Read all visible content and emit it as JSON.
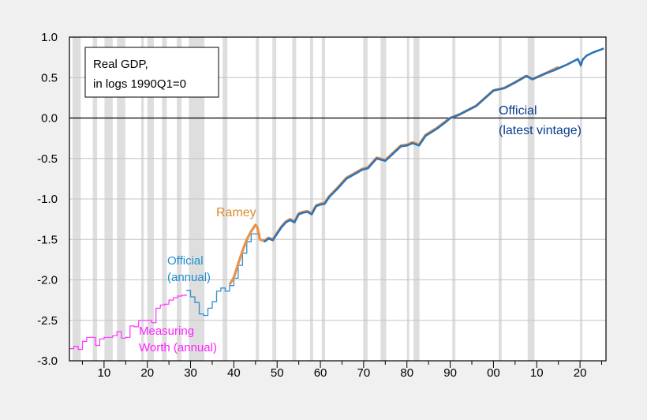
{
  "chart_data": {
    "type": "line",
    "title": "Real GDP, in logs 1990Q1=0",
    "title_lines": [
      "Real GDP,",
      "in logs 1990Q1=0"
    ],
    "xlabel": "",
    "ylabel": "",
    "xlim": [
      1902,
      2026
    ],
    "ylim": [
      -3.0,
      1.0
    ],
    "yticks": [
      1.0,
      0.5,
      0.0,
      -0.5,
      -1.0,
      -1.5,
      -2.0,
      -2.5,
      -3.0
    ],
    "ytick_labels": [
      "1.0",
      "0.5",
      "0.0",
      "-0.5",
      "-1.0",
      "-1.5",
      "-2.0",
      "-2.5",
      "-3.0"
    ],
    "xticks": [
      1910,
      1920,
      1930,
      1940,
      1950,
      1960,
      1970,
      1980,
      1990,
      2000,
      2010,
      2020
    ],
    "xtick_labels": [
      "10",
      "20",
      "30",
      "40",
      "50",
      "60",
      "70",
      "80",
      "90",
      "00",
      "10",
      "20"
    ],
    "grid": true,
    "legend": "top-left",
    "recessions": [
      [
        1902.7,
        1904.6
      ],
      [
        1907.4,
        1908.4
      ],
      [
        1910.1,
        1912.0
      ],
      [
        1913.0,
        1914.9
      ],
      [
        1918.6,
        1919.2
      ],
      [
        1920.0,
        1921.5
      ],
      [
        1923.4,
        1924.5
      ],
      [
        1926.8,
        1927.9
      ],
      [
        1929.6,
        1933.2
      ],
      [
        1937.4,
        1938.5
      ],
      [
        1945.1,
        1945.8
      ],
      [
        1948.9,
        1949.8
      ],
      [
        1953.5,
        1954.4
      ],
      [
        1957.6,
        1958.3
      ],
      [
        1960.3,
        1961.1
      ],
      [
        1969.9,
        1970.9
      ],
      [
        1973.9,
        1975.2
      ],
      [
        1980.0,
        1980.5
      ],
      [
        1981.5,
        1982.9
      ],
      [
        1990.5,
        1991.2
      ],
      [
        2001.2,
        2001.9
      ],
      [
        2007.9,
        2009.5
      ],
      [
        2020.0,
        2020.4
      ]
    ],
    "series": [
      {
        "name": "Measuring Worth (annual)",
        "label_lines": [
          "Measuring",
          "Worth (annual)"
        ],
        "color": "#ff33ff",
        "step": true,
        "x": [
          1902,
          1903,
          1904,
          1905,
          1906,
          1907,
          1908,
          1909,
          1910,
          1911,
          1912,
          1913,
          1914,
          1915,
          1916,
          1917,
          1918,
          1919,
          1920,
          1921,
          1922,
          1923,
          1924,
          1925,
          1926,
          1927,
          1928,
          1929
        ],
        "y": [
          -2.85,
          -2.82,
          -2.86,
          -2.76,
          -2.71,
          -2.71,
          -2.81,
          -2.73,
          -2.71,
          -2.71,
          -2.69,
          -2.64,
          -2.72,
          -2.71,
          -2.57,
          -2.58,
          -2.5,
          -2.5,
          -2.5,
          -2.53,
          -2.35,
          -2.31,
          -2.3,
          -2.25,
          -2.22,
          -2.2,
          -2.19,
          -2.18
        ]
      },
      {
        "name": "Official (annual)",
        "label_lines": [
          "Official",
          "(annual)"
        ],
        "color": "#2f8fcf",
        "step": true,
        "x": [
          1929,
          1930,
          1931,
          1932,
          1933,
          1934,
          1935,
          1936,
          1937,
          1938,
          1939,
          1940,
          1941,
          1942,
          1943,
          1944,
          1945,
          1946,
          1947
        ],
        "y": [
          -2.13,
          -2.21,
          -2.28,
          -2.42,
          -2.44,
          -2.35,
          -2.27,
          -2.14,
          -2.1,
          -2.14,
          -2.07,
          -1.98,
          -1.82,
          -1.67,
          -1.53,
          -1.43,
          -1.43,
          -1.5,
          -1.53
        ]
      },
      {
        "name": "Ramey",
        "label_lines": [
          "Ramey"
        ],
        "color": "#e8924a",
        "step": false,
        "x": [
          1939,
          1940,
          1941,
          1942,
          1943,
          1944,
          1945,
          1945.5,
          1946,
          1947,
          1948,
          1949,
          1950,
          1951,
          1952,
          1953,
          1954,
          1955,
          1956,
          1957,
          1958,
          1959,
          1960,
          1961,
          1962,
          1964,
          1966,
          1968,
          1969.6,
          1971,
          1973,
          1975,
          1977,
          1978.6,
          1980,
          1981.3,
          1982.8,
          1984.3,
          1987,
          1989.2,
          1990,
          1992,
          1996,
          2000,
          2002.5,
          2005,
          2007.6,
          2009,
          2012,
          2015
        ],
        "y": [
          -2.06,
          -1.97,
          -1.8,
          -1.64,
          -1.5,
          -1.4,
          -1.32,
          -1.36,
          -1.5,
          -1.52,
          -1.48,
          -1.5,
          -1.42,
          -1.34,
          -1.28,
          -1.25,
          -1.28,
          -1.18,
          -1.16,
          -1.15,
          -1.18,
          -1.08,
          -1.06,
          -1.05,
          -0.97,
          -0.86,
          -0.74,
          -0.68,
          -0.63,
          -0.61,
          -0.49,
          -0.52,
          -0.42,
          -0.34,
          -0.33,
          -0.3,
          -0.33,
          -0.21,
          -0.12,
          -0.03,
          0.0,
          0.04,
          0.15,
          0.34,
          0.37,
          0.44,
          0.52,
          0.48,
          0.55,
          0.63
        ]
      },
      {
        "name": "Official (latest vintage)",
        "label_lines": [
          "Official",
          "(latest vintage)"
        ],
        "color": "#2e75b6",
        "step": false,
        "x": [
          1947,
          1948,
          1949,
          1950,
          1951,
          1952,
          1953,
          1954,
          1955,
          1956,
          1957,
          1958,
          1959,
          1960,
          1961,
          1962,
          1964,
          1966,
          1968,
          1969.6,
          1971,
          1973,
          1975,
          1977,
          1978.6,
          1980,
          1981.3,
          1982.8,
          1984.3,
          1987,
          1989.2,
          1990,
          1992,
          1996,
          2000,
          2002.5,
          2005,
          2007.6,
          2009,
          2012,
          2014,
          2017,
          2019.5,
          2020.2,
          2020.6,
          2021.5,
          2023,
          2025.5
        ],
        "y": [
          -1.53,
          -1.49,
          -1.51,
          -1.43,
          -1.35,
          -1.29,
          -1.26,
          -1.29,
          -1.19,
          -1.17,
          -1.16,
          -1.19,
          -1.09,
          -1.07,
          -1.06,
          -0.98,
          -0.87,
          -0.75,
          -0.69,
          -0.64,
          -0.62,
          -0.5,
          -0.53,
          -0.43,
          -0.35,
          -0.34,
          -0.31,
          -0.34,
          -0.22,
          -0.13,
          -0.04,
          0.0,
          0.04,
          0.15,
          0.34,
          0.37,
          0.44,
          0.52,
          0.48,
          0.55,
          0.59,
          0.66,
          0.73,
          0.65,
          0.72,
          0.77,
          0.81,
          0.86
        ]
      }
    ]
  }
}
